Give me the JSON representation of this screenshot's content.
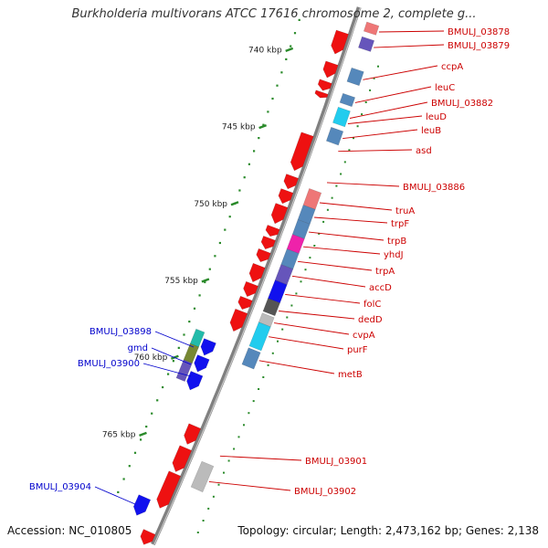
{
  "title": "Burkholderia multivorans ATCC 17616 chromosome 2, complete g...",
  "accession_text": "Accession: NC_010805",
  "topology_text": "Topology: circular; Length: 2,473,162 bp; Genes: 2,138",
  "colors": {
    "backbone": "#808080",
    "tick": "#2a8a2a",
    "right_label": "#cc0000",
    "left_label": "#0000cc",
    "gene_red": "#ee1111",
    "gene_blue": "#1111ee",
    "steel_blue": "#5588bb",
    "purple": "#6655bb",
    "cyan": "#22ccee",
    "magenta": "#ee22aa",
    "pink": "#ee7777",
    "gray": "#bbbbbb",
    "dark_gray": "#555555",
    "olive": "#778833",
    "teal": "#22bbaa"
  },
  "ruler": [
    {
      "label": "740 kbp",
      "kbp": 740
    },
    {
      "label": "745 kbp",
      "kbp": 745
    },
    {
      "label": "750 kbp",
      "kbp": 750
    },
    {
      "label": "755 kbp",
      "kbp": 755
    },
    {
      "label": "760 kbp",
      "kbp": 760
    },
    {
      "label": "765 kbp",
      "kbp": 765
    }
  ],
  "features_right": [
    {
      "name": "BMULJ_03878",
      "strand": "+",
      "color": "gene_red"
    },
    {
      "name": "BMULJ_03879",
      "strand": "+",
      "color": "purple"
    },
    {
      "name": "ccpA",
      "strand": "+",
      "color": "steel_blue"
    },
    {
      "name": "leuC",
      "strand": "+",
      "color": "steel_blue"
    },
    {
      "name": "BMULJ_03882",
      "strand": "+",
      "color": "gene_red"
    },
    {
      "name": "leuD",
      "strand": "+",
      "color": "cyan"
    },
    {
      "name": "leuB",
      "strand": "+",
      "color": "steel_blue"
    },
    {
      "name": "asd",
      "strand": "+",
      "color": "steel_blue"
    },
    {
      "name": "BMULJ_03886",
      "strand": "+",
      "color": "gene_red"
    },
    {
      "name": "truA",
      "strand": "+",
      "color": "pink"
    },
    {
      "name": "trpF",
      "strand": "+",
      "color": "steel_blue"
    },
    {
      "name": "trpB",
      "strand": "+",
      "color": "steel_blue"
    },
    {
      "name": "yhdJ",
      "strand": "+",
      "color": "magenta"
    },
    {
      "name": "trpA",
      "strand": "+",
      "color": "steel_blue"
    },
    {
      "name": "accD",
      "strand": "+",
      "color": "purple"
    },
    {
      "name": "folC",
      "strand": "+",
      "color": "gene_blue"
    },
    {
      "name": "dedD",
      "strand": "+",
      "color": "dark_gray"
    },
    {
      "name": "cvpA",
      "strand": "+",
      "color": "gray"
    },
    {
      "name": "purF",
      "strand": "+",
      "color": "cyan"
    },
    {
      "name": "metB",
      "strand": "+",
      "color": "steel_blue"
    },
    {
      "name": "BMULJ_03901",
      "strand": "+",
      "color": "gene_red"
    },
    {
      "name": "BMULJ_03902",
      "strand": "+",
      "color": "gray"
    }
  ],
  "features_left": [
    {
      "name": "BMULJ_03898",
      "strand": "-",
      "color": "teal"
    },
    {
      "name": "gmd",
      "strand": "-",
      "color": "olive"
    },
    {
      "name": "BMULJ_03900",
      "strand": "-",
      "color": "purple"
    },
    {
      "name": "BMULJ_03904",
      "strand": "-",
      "color": "gene_blue"
    }
  ]
}
